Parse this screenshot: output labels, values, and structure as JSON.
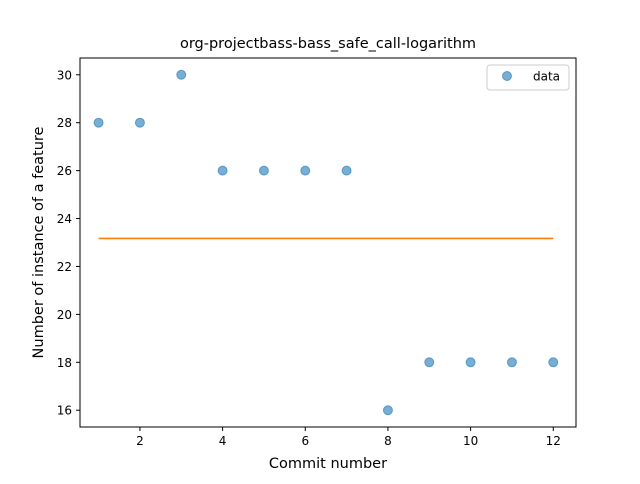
{
  "chart_data": {
    "type": "scatter",
    "title": "org-projectbass-bass_safe_call-logarithm",
    "xlabel": "Commit number",
    "ylabel": "Number of instance of a feature",
    "xlim": [
      0.55,
      12.55
    ],
    "ylim": [
      15.3,
      30.7
    ],
    "xticks": [
      2,
      4,
      6,
      8,
      10,
      12
    ],
    "yticks": [
      16,
      18,
      20,
      22,
      24,
      26,
      28,
      30
    ],
    "grid": false,
    "legend_position": "top-right",
    "series": [
      {
        "name": "data",
        "kind": "scatter",
        "color": "#1f77b4",
        "x": [
          1,
          2,
          3,
          4,
          5,
          6,
          7,
          8,
          9,
          10,
          11,
          12
        ],
        "y": [
          28,
          28,
          30,
          26,
          26,
          26,
          26,
          16,
          18,
          18,
          18,
          18
        ]
      },
      {
        "kind": "line",
        "color": "#ff7f0e",
        "x": [
          1,
          12
        ],
        "y": [
          23.17,
          23.17
        ]
      }
    ]
  }
}
